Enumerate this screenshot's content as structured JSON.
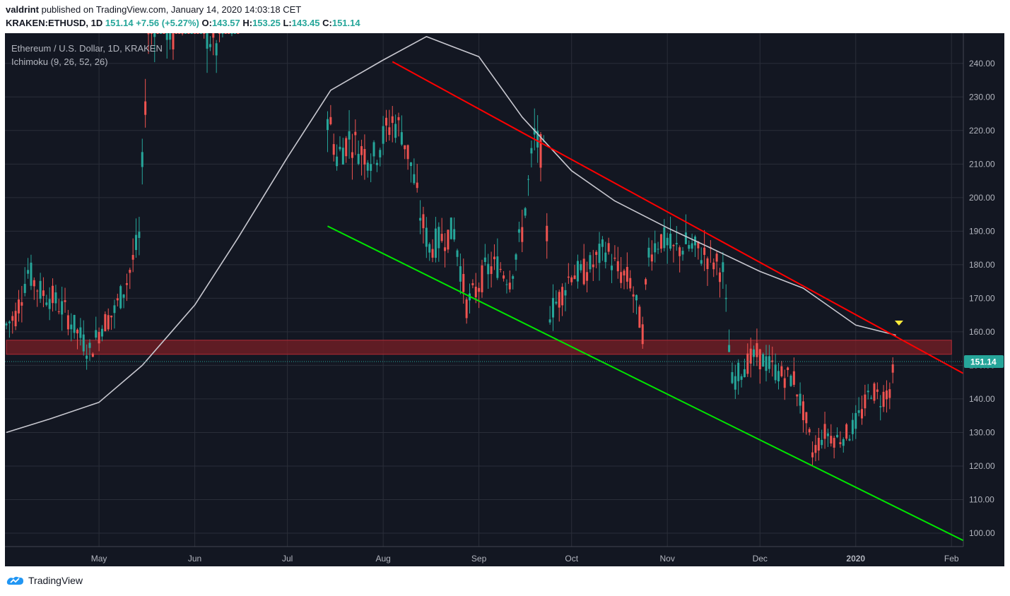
{
  "header": {
    "user": "valdrint",
    "published": "published on TradingView.com, January 14, 2020 14:03:18 CET"
  },
  "ohlc": {
    "symbol": "KRAKEN:ETHUSD, 1D",
    "last": "151.14",
    "change": "+7.56 (+5.27%)",
    "o_label": "O:",
    "o": "143.57",
    "h_label": "H:",
    "h": "153.25",
    "l_label": "L:",
    "l": "143.45",
    "c_label": "C:",
    "c": "151.14"
  },
  "legend": {
    "title": "Ethereum / U.S. Dollar, 1D, KRAKEN",
    "indicator": "Ichimoku (9, 26, 52, 26)"
  },
  "footer": {
    "brand": "TradingView"
  },
  "colors": {
    "background": "#131722",
    "grid": "#2a2e39",
    "up": "#26a69a",
    "down": "#ef5350",
    "resistance": "#ff0000",
    "support": "#00e600",
    "ma": "#c8c8d0",
    "zone": "#7a1f26",
    "marker": "#ffeb3b"
  },
  "chart_data": {
    "type": "candlestick",
    "title": "Ethereum / U.S. Dollar, 1D, KRAKEN",
    "x_tick_labels": [
      "May",
      "Jun",
      "Jul",
      "Aug",
      "Sep",
      "Oct",
      "Nov",
      "Dec",
      "2020",
      "Feb"
    ],
    "x_tick_dates": [
      "2019-05-01",
      "2019-06-01",
      "2019-07-01",
      "2019-08-01",
      "2019-09-01",
      "2019-10-01",
      "2019-11-01",
      "2019-12-01",
      "2020-01-01",
      "2020-02-01"
    ],
    "y_tick_labels": [
      "100.00",
      "110.00",
      "120.00",
      "130.00",
      "140.00",
      "150.00",
      "160.00",
      "170.00",
      "180.00",
      "190.00",
      "200.00",
      "210.00",
      "220.00",
      "230.00",
      "240.00"
    ],
    "y_range": [
      96,
      249
    ],
    "last_price": "151.14",
    "close_series": {
      "dates": [
        "2019-04-01",
        "2019-04-04",
        "2019-04-08",
        "2019-04-12",
        "2019-04-16",
        "2019-04-20",
        "2019-04-24",
        "2019-04-28",
        "2019-05-02",
        "2019-05-06",
        "2019-05-10",
        "2019-05-14",
        "2019-05-17",
        "2019-05-20",
        "2019-05-25",
        "2019-05-30",
        "2019-06-04",
        "2019-06-08",
        "2019-06-12",
        "2019-06-16",
        "2019-07-14",
        "2019-07-17",
        "2019-07-21",
        "2019-07-25",
        "2019-07-29",
        "2019-08-01",
        "2019-08-04",
        "2019-08-07",
        "2019-08-10",
        "2019-08-13",
        "2019-08-16",
        "2019-08-20",
        "2019-08-24",
        "2019-08-28",
        "2019-08-31",
        "2019-09-03",
        "2019-09-07",
        "2019-09-11",
        "2019-09-15",
        "2019-09-19",
        "2019-09-22",
        "2019-09-24",
        "2019-09-27",
        "2019-10-01",
        "2019-10-04",
        "2019-10-08",
        "2019-10-12",
        "2019-10-16",
        "2019-10-20",
        "2019-10-24",
        "2019-10-26",
        "2019-10-30",
        "2019-11-03",
        "2019-11-07",
        "2019-11-11",
        "2019-11-15",
        "2019-11-19",
        "2019-11-22",
        "2019-11-26",
        "2019-11-30",
        "2019-12-04",
        "2019-12-08",
        "2019-12-12",
        "2019-12-16",
        "2019-12-18",
        "2019-12-22",
        "2019-12-26",
        "2019-12-30",
        "2020-01-03",
        "2020-01-06",
        "2020-01-09",
        "2020-01-12",
        "2020-01-14"
      ],
      "values": [
        162,
        165,
        178,
        172,
        170,
        166,
        160,
        154,
        162,
        166,
        175,
        188,
        250,
        255,
        248,
        268,
        250,
        245,
        255,
        262,
        225,
        212,
        218,
        214,
        212,
        218,
        223,
        220,
        210,
        195,
        185,
        188,
        190,
        168,
        172,
        178,
        180,
        176,
        190,
        218,
        212,
        166,
        170,
        178,
        177,
        180,
        185,
        178,
        175,
        160,
        184,
        188,
        184,
        186,
        184,
        182,
        178,
        145,
        150,
        153,
        150,
        147,
        146,
        133,
        124,
        130,
        128,
        130,
        136,
        143,
        140,
        143,
        151
      ]
    },
    "ma_series": {
      "dates": [
        "2019-04-01",
        "2019-04-15",
        "2019-05-01",
        "2019-05-15",
        "2019-06-01",
        "2019-06-15",
        "2019-07-01",
        "2019-07-15",
        "2019-08-01",
        "2019-08-15",
        "2019-09-01",
        "2019-09-15",
        "2019-10-01",
        "2019-10-15",
        "2019-11-01",
        "2019-11-15",
        "2019-12-01",
        "2019-12-15",
        "2020-01-01",
        "2020-01-14"
      ],
      "values": [
        130,
        134,
        139,
        150,
        168,
        188,
        212,
        232,
        241,
        248,
        242,
        224,
        208,
        199,
        191,
        185,
        178,
        173,
        162,
        159
      ]
    },
    "annotations": {
      "resistance_line": {
        "start": [
          "2019-08-04",
          240.5
        ],
        "end": [
          "2020-02-10",
          145
        ]
      },
      "support_line": {
        "start": [
          "2019-07-14",
          191.5
        ],
        "end": [
          "2020-02-11",
          95
        ]
      },
      "support_zone": {
        "from_date": "2019-04-01",
        "to_date": "2020-02-01",
        "low": 153.3,
        "high": 157.5
      },
      "marker": {
        "date": "2020-01-15",
        "price": 162.5
      }
    }
  }
}
